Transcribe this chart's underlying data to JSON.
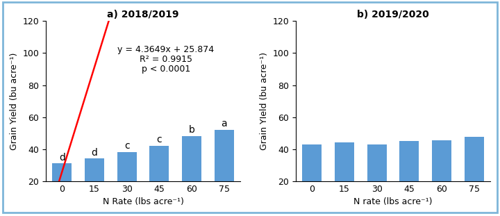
{
  "title_a": "a) 2018/2019",
  "title_b": "b) 2019/2020",
  "x_values": [
    0,
    15,
    30,
    45,
    60,
    75
  ],
  "x_positions": [
    0,
    1,
    2,
    3,
    4,
    5
  ],
  "values_a": [
    31,
    34,
    38,
    42,
    48,
    52
  ],
  "values_b": [
    43,
    44,
    43,
    45,
    45.5,
    47.5
  ],
  "bar_color": "#5B9BD5",
  "bar_width": 0.6,
  "ylim": [
    20,
    120
  ],
  "yticks": [
    20,
    40,
    60,
    80,
    100,
    120
  ],
  "xlabel_a": "N Rate (lbs acre⁻¹)",
  "xlabel_b": "N rate (lbs acre⁻¹)",
  "ylabel_a": "Grain Yield (bu acre⁻¹)",
  "ylabel_b": "Grain YIeld (bu acre⁻¹)",
  "regression_slope": 4.3649,
  "regression_intercept": 25.874,
  "annotation_line1": "y = 4.3649x + 25.874",
  "annotation_line2": "R² = 0.9915",
  "annotation_line3": "p < 0.0001",
  "letter_labels_a": [
    "d",
    "d",
    "c",
    "c",
    "b",
    "a"
  ],
  "line_color": "#FF0000",
  "figure_bg": "#FFFFFF",
  "border_color": "#7EB6D9",
  "font_size_title": 10,
  "font_size_axis": 9,
  "font_size_tick": 9,
  "font_size_annotation": 9,
  "font_size_letter": 10
}
